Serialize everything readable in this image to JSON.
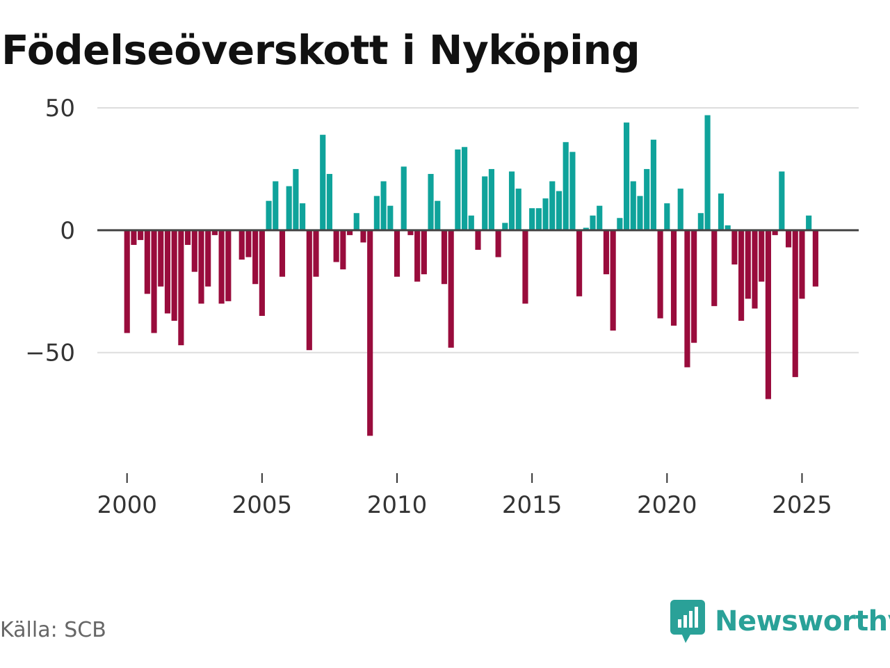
{
  "chart_data": {
    "type": "bar",
    "title": "Födelseöverskott i Nyköping",
    "source": "Källa: SCB",
    "brand": "Newsworthy",
    "xlabel": "",
    "ylabel": "",
    "ylim": [
      -95,
      50
    ],
    "xlim": [
      1998.9,
      2027.1
    ],
    "yticks": [
      50,
      0,
      -50
    ],
    "ytick_labels": [
      "50",
      "0",
      "−50"
    ],
    "xticks": [
      2000,
      2005,
      2010,
      2015,
      2020,
      2025
    ],
    "xtick_labels": [
      "2000",
      "2005",
      "2010",
      "2015",
      "2020",
      "2025"
    ],
    "positive_color": "#0fa39b",
    "negative_color": "#990c3c",
    "grid_color": "#dddddd",
    "zero_line_color": "#444444",
    "brand_color": "#2aa198",
    "start": 2000.0,
    "step": 0.25,
    "values": [
      -42,
      -6,
      -4,
      -26,
      -42,
      -23,
      -34,
      -37,
      -47,
      -6,
      -17,
      -30,
      -23,
      -2,
      -30,
      -29,
      0,
      -12,
      -11,
      -22,
      -35,
      12,
      20,
      -19,
      18,
      25,
      11,
      -49,
      -19,
      39,
      23,
      -13,
      -16,
      -2,
      7,
      -5,
      -84,
      14,
      20,
      10,
      -19,
      26,
      -2,
      -21,
      -18,
      23,
      12,
      -22,
      -48,
      33,
      34,
      6,
      -8,
      22,
      25,
      -11,
      3,
      24,
      17,
      -30,
      9,
      9,
      13,
      20,
      16,
      36,
      32,
      -27,
      1,
      6,
      10,
      -18,
      -41,
      5,
      44,
      20,
      14,
      25,
      37,
      -36,
      11,
      -39,
      17,
      -56,
      -46,
      7,
      47,
      -31,
      15,
      2,
      -14,
      -37,
      -28,
      -32,
      -21,
      -69,
      -2,
      24,
      -7,
      -60,
      -28,
      6,
      -23
    ]
  }
}
